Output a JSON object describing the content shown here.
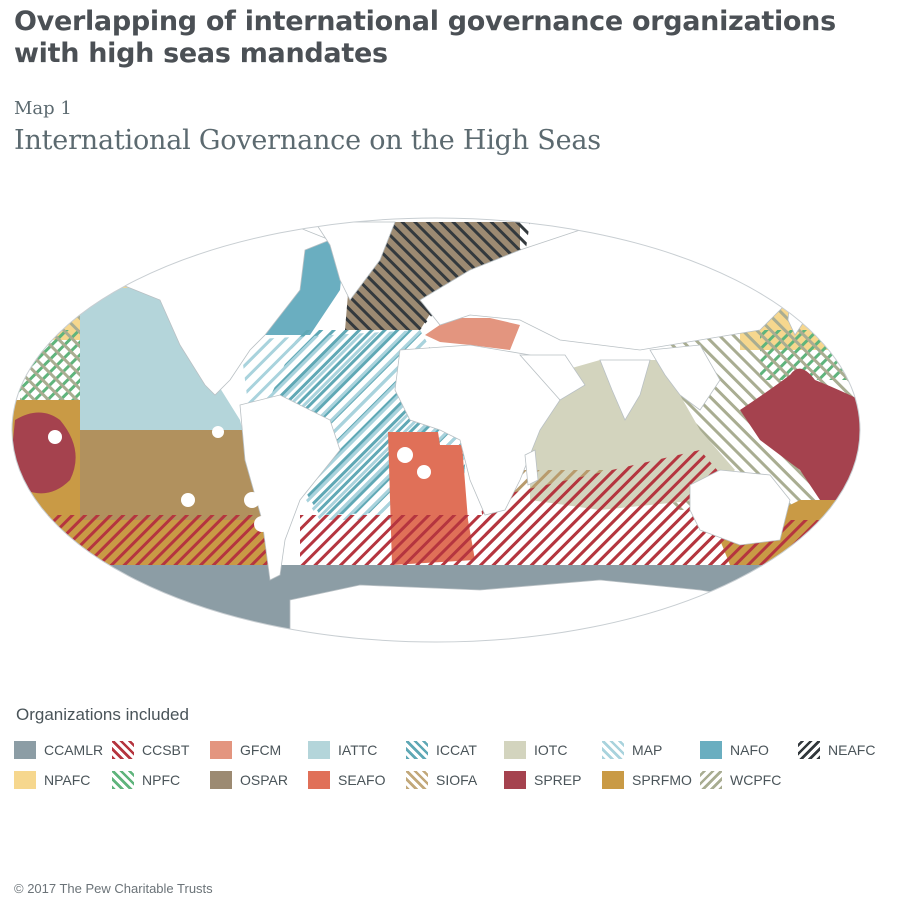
{
  "header": {
    "title": "Overlapping of international governance organizations with high seas mandates",
    "kicker": "Map 1",
    "subtitle": "International Governance on the High Seas"
  },
  "legend": {
    "title": "Organizations included",
    "items": [
      {
        "label": "CCAMLR",
        "color": "#8c9da5",
        "style": "solid"
      },
      {
        "label": "CCSBT",
        "color": "#b5353f",
        "style": "hatch-fwd"
      },
      {
        "label": "GFCM",
        "color": "#e3957f",
        "style": "solid"
      },
      {
        "label": "IATTC",
        "color": "#b4d5da",
        "style": "solid"
      },
      {
        "label": "ICCAT",
        "color": "#5fa8b5",
        "style": "hatch-fwd"
      },
      {
        "label": "IOTC",
        "color": "#d3d4be",
        "style": "solid"
      },
      {
        "label": "MAP",
        "color": "#a9d3dd",
        "style": "hatch-fwd"
      },
      {
        "label": "NAFO",
        "color": "#6aaec0",
        "style": "solid"
      },
      {
        "label": "NEAFC",
        "color": "#33393d",
        "style": "hatch-back"
      },
      {
        "label": "NPAFC",
        "color": "#f6d78e",
        "style": "solid"
      },
      {
        "label": "NPFC",
        "color": "#5fb47c",
        "style": "hatch-fwd"
      },
      {
        "label": "OSPAR",
        "color": "#9c8a72",
        "style": "solid"
      },
      {
        "label": "SEAFO",
        "color": "#e07058",
        "style": "solid"
      },
      {
        "label": "SIOFA",
        "color": "#c2a87a",
        "style": "hatch-fwd"
      },
      {
        "label": "SPREP",
        "color": "#a5424e",
        "style": "solid"
      },
      {
        "label": "SPRFMO",
        "color": "#c99a45",
        "style": "solid"
      },
      {
        "label": "WCPFC",
        "color": "#a9ad92",
        "style": "hatch-back"
      }
    ]
  },
  "credit": "© 2017 The Pew Charitable Trusts"
}
